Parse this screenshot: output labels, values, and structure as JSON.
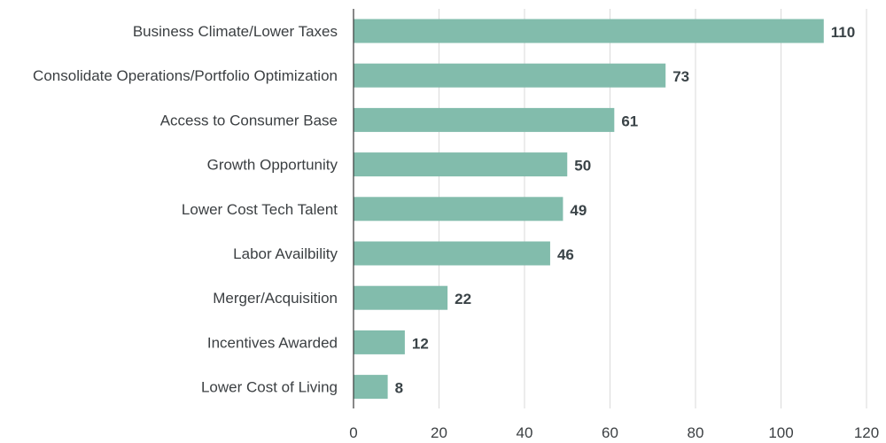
{
  "chart_data": {
    "type": "bar",
    "orientation": "horizontal",
    "categories": [
      "Business Climate/Lower Taxes",
      "Consolidate Operations/Portfolio Optimization",
      "Access to Consumer Base",
      "Growth Opportunity",
      "Lower Cost Tech Talent",
      "Labor Availbility",
      "Merger/Acquisition",
      "Incentives Awarded",
      "Lower Cost of Living"
    ],
    "values": [
      110,
      73,
      61,
      50,
      49,
      46,
      22,
      12,
      8
    ],
    "xlim": [
      0,
      120
    ],
    "xticks": [
      0,
      20,
      40,
      60,
      80,
      100,
      120
    ],
    "grid": "vertical",
    "bar_color": "#82bcac",
    "data_labels": true
  }
}
